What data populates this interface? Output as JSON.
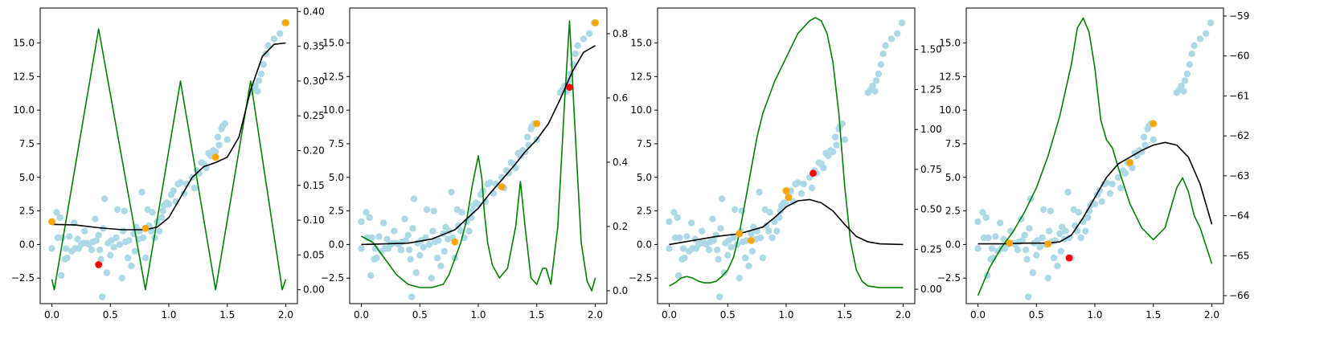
{
  "chart_data": [
    {
      "type": "scatter",
      "xlim": [
        -0.1,
        2.1
      ],
      "ylim": [
        -4.4,
        17.6
      ],
      "y2lim": [
        -0.02,
        0.405
      ],
      "x_ticks": [
        0.0,
        0.5,
        1.0,
        1.5,
        2.0
      ],
      "x_tick_labels": [
        "0.0",
        "0.5",
        "1.0",
        "1.5",
        "2.0"
      ],
      "y_ticks": [
        -2.5,
        0.0,
        2.5,
        5.0,
        7.5,
        10.0,
        12.5,
        15.0
      ],
      "y_tick_labels": [
        "−2.5",
        "0.0",
        "2.5",
        "5.0",
        "7.5",
        "10.0",
        "12.5",
        "15.0"
      ],
      "y2_ticks": [
        0.0,
        0.05,
        0.1,
        0.15,
        0.2,
        0.25,
        0.3,
        0.35,
        0.4
      ],
      "y2_tick_labels": [
        "0.00",
        "0.05",
        "0.10",
        "0.15",
        "0.20",
        "0.25",
        "0.30",
        "0.35",
        "0.40"
      ],
      "orange_points": [
        [
          0.0,
          1.7
        ],
        [
          0.8,
          1.2
        ],
        [
          1.4,
          6.5
        ],
        [
          2.0,
          16.5
        ]
      ],
      "red_points": [
        [
          0.4,
          -1.5
        ]
      ],
      "fit_curve": [
        [
          0.0,
          1.5
        ],
        [
          0.2,
          1.45
        ],
        [
          0.4,
          1.25
        ],
        [
          0.6,
          1.1
        ],
        [
          0.8,
          1.1
        ],
        [
          0.9,
          1.3
        ],
        [
          1.0,
          2.0
        ],
        [
          1.1,
          3.5
        ],
        [
          1.2,
          5.0
        ],
        [
          1.3,
          5.8
        ],
        [
          1.4,
          6.1
        ],
        [
          1.5,
          6.5
        ],
        [
          1.6,
          8.0
        ],
        [
          1.7,
          11.5
        ],
        [
          1.8,
          14.0
        ],
        [
          1.9,
          14.9
        ],
        [
          2.0,
          15.0
        ]
      ],
      "density_curve": [
        [
          0.0,
          0.015
        ],
        [
          0.02,
          0.0
        ],
        [
          0.4,
          0.375
        ],
        [
          0.8,
          0.0
        ],
        [
          1.1,
          0.3
        ],
        [
          1.4,
          0.0
        ],
        [
          1.7,
          0.3
        ],
        [
          1.97,
          0.0
        ],
        [
          2.0,
          0.015
        ]
      ]
    },
    {
      "type": "scatter",
      "xlim": [
        -0.1,
        2.1
      ],
      "ylim": [
        -4.4,
        17.6
      ],
      "y2lim": [
        -0.04,
        0.88
      ],
      "x_ticks": [
        0.0,
        0.5,
        1.0,
        1.5,
        2.0
      ],
      "x_tick_labels": [
        "0.0",
        "0.5",
        "1.0",
        "1.5",
        "2.0"
      ],
      "y_ticks": [
        -2.5,
        0.0,
        2.5,
        5.0,
        7.5,
        10.0,
        12.5,
        15.0
      ],
      "y_tick_labels": [
        "−2.5",
        "0.0",
        "2.5",
        "5.0",
        "7.5",
        "10.0",
        "12.5",
        "15.0"
      ],
      "y2_ticks": [
        0.0,
        0.2,
        0.4,
        0.6,
        0.8
      ],
      "y2_tick_labels": [
        "0.0",
        "0.2",
        "0.4",
        "0.6",
        "0.8"
      ],
      "orange_points": [
        [
          0.8,
          0.2
        ],
        [
          1.2,
          4.3
        ],
        [
          1.5,
          9.0
        ],
        [
          2.0,
          16.5
        ]
      ],
      "red_points": [
        [
          1.78,
          11.7
        ]
      ],
      "fit_curve": [
        [
          0.0,
          0.0
        ],
        [
          0.2,
          0.05
        ],
        [
          0.4,
          0.1
        ],
        [
          0.6,
          0.4
        ],
        [
          0.8,
          1.1
        ],
        [
          1.0,
          2.7
        ],
        [
          1.1,
          3.8
        ],
        [
          1.2,
          4.8
        ],
        [
          1.3,
          5.8
        ],
        [
          1.4,
          6.9
        ],
        [
          1.5,
          7.8
        ],
        [
          1.6,
          9.0
        ],
        [
          1.7,
          10.8
        ],
        [
          1.8,
          12.8
        ],
        [
          1.9,
          14.3
        ],
        [
          2.0,
          14.8
        ]
      ],
      "density_curve": [
        [
          0.0,
          0.17
        ],
        [
          0.1,
          0.15
        ],
        [
          0.2,
          0.1
        ],
        [
          0.3,
          0.05
        ],
        [
          0.4,
          0.02
        ],
        [
          0.5,
          0.01
        ],
        [
          0.6,
          0.01
        ],
        [
          0.65,
          0.015
        ],
        [
          0.7,
          0.02
        ],
        [
          0.75,
          0.05
        ],
        [
          0.8,
          0.1
        ],
        [
          0.85,
          0.15
        ],
        [
          0.9,
          0.22
        ],
        [
          0.95,
          0.33
        ],
        [
          1.0,
          0.42
        ],
        [
          1.03,
          0.35
        ],
        [
          1.05,
          0.25
        ],
        [
          1.08,
          0.15
        ],
        [
          1.12,
          0.08
        ],
        [
          1.18,
          0.04
        ],
        [
          1.25,
          0.07
        ],
        [
          1.32,
          0.2
        ],
        [
          1.36,
          0.34
        ],
        [
          1.4,
          0.2
        ],
        [
          1.45,
          0.04
        ],
        [
          1.5,
          0.02
        ],
        [
          1.55,
          0.07
        ],
        [
          1.58,
          0.07
        ],
        [
          1.62,
          0.02
        ],
        [
          1.68,
          0.2
        ],
        [
          1.74,
          0.6
        ],
        [
          1.78,
          0.84
        ],
        [
          1.82,
          0.55
        ],
        [
          1.88,
          0.15
        ],
        [
          1.93,
          0.03
        ],
        [
          1.97,
          0.0
        ],
        [
          2.0,
          0.04
        ]
      ]
    },
    {
      "type": "scatter",
      "xlim": [
        -0.1,
        2.1
      ],
      "ylim": [
        -4.4,
        17.6
      ],
      "y2lim": [
        -0.09,
        1.76
      ],
      "x_ticks": [
        0.0,
        0.5,
        1.0,
        1.5,
        2.0
      ],
      "x_tick_labels": [
        "0.0",
        "0.5",
        "1.0",
        "1.5",
        "2.0"
      ],
      "y_ticks": [
        -2.5,
        0.0,
        2.5,
        5.0,
        7.5,
        10.0,
        12.5,
        15.0
      ],
      "y_tick_labels": [
        "−2.5",
        "0.0",
        "2.5",
        "5.0",
        "7.5",
        "10.0",
        "12.5",
        "15.0"
      ],
      "y2_ticks": [
        0.0,
        0.25,
        0.5,
        0.75,
        1.0,
        1.25,
        1.5
      ],
      "y2_tick_labels": [
        "0.00",
        "0.25",
        "0.50",
        "0.75",
        "1.00",
        "1.25",
        "1.50"
      ],
      "orange_points": [
        [
          0.6,
          0.8
        ],
        [
          0.7,
          0.3
        ],
        [
          1.0,
          4.0
        ],
        [
          1.02,
          3.5
        ]
      ],
      "red_points": [
        [
          1.23,
          5.3
        ]
      ],
      "fit_curve": [
        [
          0.0,
          0.0
        ],
        [
          0.2,
          0.3
        ],
        [
          0.4,
          0.6
        ],
        [
          0.6,
          0.8
        ],
        [
          0.8,
          1.3
        ],
        [
          0.9,
          2.0
        ],
        [
          1.0,
          2.8
        ],
        [
          1.1,
          3.25
        ],
        [
          1.2,
          3.35
        ],
        [
          1.3,
          3.1
        ],
        [
          1.4,
          2.5
        ],
        [
          1.5,
          1.5
        ],
        [
          1.6,
          0.6
        ],
        [
          1.7,
          0.2
        ],
        [
          1.8,
          0.05
        ],
        [
          2.0,
          0.0
        ]
      ],
      "density_curve": [
        [
          0.0,
          0.02
        ],
        [
          0.05,
          0.04
        ],
        [
          0.1,
          0.07
        ],
        [
          0.15,
          0.08
        ],
        [
          0.2,
          0.07
        ],
        [
          0.25,
          0.05
        ],
        [
          0.3,
          0.04
        ],
        [
          0.35,
          0.04
        ],
        [
          0.4,
          0.05
        ],
        [
          0.45,
          0.08
        ],
        [
          0.5,
          0.12
        ],
        [
          0.55,
          0.2
        ],
        [
          0.6,
          0.35
        ],
        [
          0.65,
          0.55
        ],
        [
          0.7,
          0.75
        ],
        [
          0.75,
          0.95
        ],
        [
          0.8,
          1.1
        ],
        [
          0.85,
          1.2
        ],
        [
          0.9,
          1.3
        ],
        [
          1.0,
          1.45
        ],
        [
          1.1,
          1.6
        ],
        [
          1.2,
          1.68
        ],
        [
          1.25,
          1.7
        ],
        [
          1.3,
          1.68
        ],
        [
          1.35,
          1.6
        ],
        [
          1.4,
          1.42
        ],
        [
          1.45,
          1.1
        ],
        [
          1.5,
          0.65
        ],
        [
          1.55,
          0.3
        ],
        [
          1.6,
          0.12
        ],
        [
          1.65,
          0.05
        ],
        [
          1.7,
          0.02
        ],
        [
          1.8,
          0.01
        ],
        [
          2.0,
          0.01
        ]
      ]
    },
    {
      "type": "scatter",
      "xlim": [
        -0.1,
        2.1
      ],
      "ylim": [
        -4.4,
        17.6
      ],
      "y2lim": [
        -66.2,
        -58.8
      ],
      "x_ticks": [
        0.0,
        0.5,
        1.0,
        1.5,
        2.0
      ],
      "x_tick_labels": [
        "0.0",
        "0.5",
        "1.0",
        "1.5",
        "2.0"
      ],
      "y_ticks": [
        -2.5,
        0.0,
        2.5,
        5.0,
        7.5,
        10.0,
        12.5,
        15.0
      ],
      "y_tick_labels": [
        "−2.5",
        "0.0",
        "2.5",
        "5.0",
        "7.5",
        "10.0",
        "12.5",
        "15.0"
      ],
      "y2_ticks": [
        -66,
        -65,
        -64,
        -63,
        -62,
        -61,
        -60,
        -59
      ],
      "y2_tick_labels": [
        "−66",
        "−65",
        "−64",
        "−63",
        "−62",
        "−61",
        "−60",
        "−59"
      ],
      "orange_points": [
        [
          0.27,
          0.1
        ],
        [
          0.6,
          0.05
        ],
        [
          1.3,
          6.1
        ],
        [
          1.5,
          9.0
        ]
      ],
      "red_points": [
        [
          0.78,
          -1.0
        ]
      ],
      "fit_curve": [
        [
          0.0,
          0.05
        ],
        [
          0.2,
          0.05
        ],
        [
          0.4,
          0.1
        ],
        [
          0.6,
          0.1
        ],
        [
          0.7,
          0.2
        ],
        [
          0.8,
          0.7
        ],
        [
          0.9,
          2.0
        ],
        [
          1.0,
          3.5
        ],
        [
          1.1,
          5.0
        ],
        [
          1.2,
          6.0
        ],
        [
          1.3,
          6.5
        ],
        [
          1.4,
          7.0
        ],
        [
          1.5,
          7.4
        ],
        [
          1.6,
          7.6
        ],
        [
          1.7,
          7.4
        ],
        [
          1.8,
          6.5
        ],
        [
          1.9,
          4.5
        ],
        [
          2.0,
          1.5
        ]
      ],
      "density_curve": [
        [
          0.0,
          -66.0
        ],
        [
          0.1,
          -65.3
        ],
        [
          0.2,
          -64.8
        ],
        [
          0.3,
          -64.4
        ],
        [
          0.4,
          -63.9
        ],
        [
          0.5,
          -63.3
        ],
        [
          0.6,
          -62.5
        ],
        [
          0.7,
          -61.5
        ],
        [
          0.8,
          -60.2
        ],
        [
          0.85,
          -59.3
        ],
        [
          0.9,
          -59.05
        ],
        [
          0.95,
          -59.4
        ],
        [
          1.0,
          -60.3
        ],
        [
          1.05,
          -61.6
        ],
        [
          1.1,
          -62.1
        ],
        [
          1.15,
          -62.3
        ],
        [
          1.2,
          -62.8
        ],
        [
          1.3,
          -63.7
        ],
        [
          1.4,
          -64.3
        ],
        [
          1.5,
          -64.6
        ],
        [
          1.6,
          -64.3
        ],
        [
          1.7,
          -63.3
        ],
        [
          1.75,
          -63.05
        ],
        [
          1.8,
          -63.4
        ],
        [
          1.85,
          -64.0
        ],
        [
          1.9,
          -64.3
        ],
        [
          2.0,
          -65.2
        ]
      ]
    }
  ],
  "shared_scatter": [
    [
      0.0,
      -0.3
    ],
    [
      0.0,
      1.7
    ],
    [
      0.04,
      2.4
    ],
    [
      0.05,
      0.5
    ],
    [
      0.07,
      2.0
    ],
    [
      0.08,
      -2.3
    ],
    [
      0.09,
      0.5
    ],
    [
      0.11,
      -1.1
    ],
    [
      0.12,
      -0.3
    ],
    [
      0.13,
      -1.0
    ],
    [
      0.15,
      0.6
    ],
    [
      0.17,
      -0.5
    ],
    [
      0.19,
      1.6
    ],
    [
      0.2,
      -0.3
    ],
    [
      0.22,
      0.4
    ],
    [
      0.23,
      -0.3
    ],
    [
      0.25,
      0.0
    ],
    [
      0.27,
      0.1
    ],
    [
      0.28,
      1.0
    ],
    [
      0.3,
      0.1
    ],
    [
      0.32,
      0.0
    ],
    [
      0.34,
      -0.4
    ],
    [
      0.35,
      0.2
    ],
    [
      0.37,
      1.9
    ],
    [
      0.38,
      0.3
    ],
    [
      0.4,
      0.7
    ],
    [
      0.41,
      -0.4
    ],
    [
      0.42,
      -1.1
    ],
    [
      0.43,
      -3.9
    ],
    [
      0.44,
      1.2
    ],
    [
      0.45,
      3.4
    ],
    [
      0.47,
      -2.1
    ],
    [
      0.48,
      0.1
    ],
    [
      0.5,
      -0.8
    ],
    [
      0.51,
      0.3
    ],
    [
      0.53,
      -0.2
    ],
    [
      0.55,
      0.5
    ],
    [
      0.56,
      2.6
    ],
    [
      0.58,
      0.0
    ],
    [
      0.6,
      -2.5
    ],
    [
      0.61,
      1.0
    ],
    [
      0.62,
      2.5
    ],
    [
      0.63,
      0.2
    ],
    [
      0.65,
      -1.0
    ],
    [
      0.66,
      0.3
    ],
    [
      0.68,
      -1.6
    ],
    [
      0.7,
      0.8
    ],
    [
      0.71,
      -0.5
    ],
    [
      0.72,
      1.3
    ],
    [
      0.74,
      0.4
    ],
    [
      0.75,
      1.0
    ],
    [
      0.77,
      3.9
    ],
    [
      0.78,
      0.5
    ],
    [
      0.8,
      -1.0
    ],
    [
      0.82,
      2.6
    ],
    [
      0.83,
      1.4
    ],
    [
      0.85,
      1.0
    ],
    [
      0.86,
      2.4
    ],
    [
      0.88,
      0.5
    ],
    [
      0.9,
      1.7
    ],
    [
      0.92,
      1.0
    ],
    [
      0.94,
      2.0
    ],
    [
      0.95,
      2.5
    ],
    [
      0.96,
      2.9
    ],
    [
      0.98,
      3.1
    ],
    [
      1.0,
      3.0
    ],
    [
      1.02,
      3.7
    ],
    [
      1.04,
      4.0
    ],
    [
      1.06,
      3.2
    ],
    [
      1.08,
      4.5
    ],
    [
      1.1,
      4.6
    ],
    [
      1.13,
      3.8
    ],
    [
      1.15,
      4.5
    ],
    [
      1.2,
      5.0
    ],
    [
      1.22,
      4.2
    ],
    [
      1.24,
      5.5
    ],
    [
      1.26,
      5.3
    ],
    [
      1.28,
      6.1
    ],
    [
      1.3,
      6.0
    ],
    [
      1.32,
      5.7
    ],
    [
      1.34,
      6.8
    ],
    [
      1.36,
      6.6
    ],
    [
      1.38,
      7.0
    ],
    [
      1.4,
      6.9
    ],
    [
      1.42,
      8.0
    ],
    [
      1.43,
      7.4
    ],
    [
      1.45,
      8.6
    ],
    [
      1.46,
      8.8
    ],
    [
      1.48,
      9.0
    ],
    [
      1.5,
      7.8
    ],
    [
      1.7,
      11.3
    ],
    [
      1.72,
      11.5
    ],
    [
      1.74,
      11.8
    ],
    [
      1.76,
      11.4
    ],
    [
      1.77,
      12.2
    ],
    [
      1.79,
      12.7
    ],
    [
      1.81,
      13.4
    ],
    [
      1.83,
      14.2
    ],
    [
      1.85,
      14.8
    ],
    [
      1.9,
      15.3
    ],
    [
      1.95,
      15.7
    ],
    [
      1.99,
      16.5
    ]
  ],
  "colors": {
    "scatter": "#add8e6",
    "orange": "#ffa500",
    "red": "#ff0000",
    "fit": "#000000",
    "density": "#008000"
  }
}
